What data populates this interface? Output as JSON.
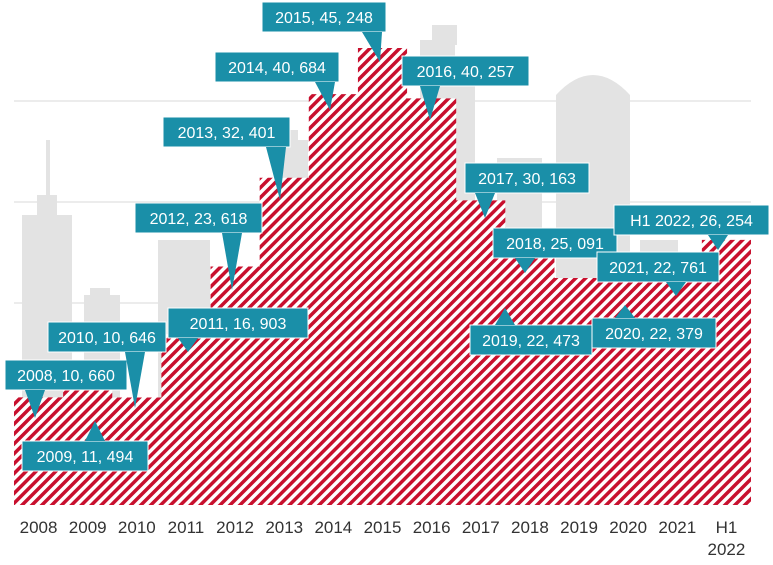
{
  "chart_data": {
    "type": "area",
    "categories": [
      "2008",
      "2009",
      "2010",
      "2011",
      "2012",
      "2013",
      "2014",
      "2015",
      "2016",
      "2017",
      "2018",
      "2019",
      "2020",
      "2021",
      "H1 2022"
    ],
    "tick_labels": [
      [
        "2008"
      ],
      [
        "2009"
      ],
      [
        "2010"
      ],
      [
        "2011"
      ],
      [
        "2012"
      ],
      [
        "2013"
      ],
      [
        "2014"
      ],
      [
        "2015"
      ],
      [
        "2016"
      ],
      [
        "2017"
      ],
      [
        "2018"
      ],
      [
        "2019"
      ],
      [
        "2020"
      ],
      [
        "2021"
      ],
      [
        "H1",
        "2022"
      ]
    ],
    "values": [
      10660,
      11494,
      10646,
      16903,
      23618,
      32401,
      40684,
      45248,
      40257,
      30163,
      25091,
      22473,
      22379,
      22761,
      26254
    ],
    "data_labels": [
      "2008, 10, 660",
      "2009, 11, 494",
      "2010, 10, 646",
      "2011, 16, 903",
      "2012, 23, 618",
      "2013, 32, 401",
      "2014, 40, 684",
      "2015, 45, 248",
      "2016, 40, 257",
      "2017, 30, 163",
      "2018, 25, 091",
      "2019, 22, 473",
      "2020, 22, 379",
      "2021, 22, 761",
      "H1 2022, 26, 254"
    ],
    "ylim": [
      0,
      50000
    ],
    "grid": true,
    "colors": {
      "hatch": "#c8102e",
      "callout": "#1a8fa8",
      "callout_border": "#ffffff",
      "grid": "#d9d9d9",
      "skyline": "#e3e3e3"
    }
  }
}
